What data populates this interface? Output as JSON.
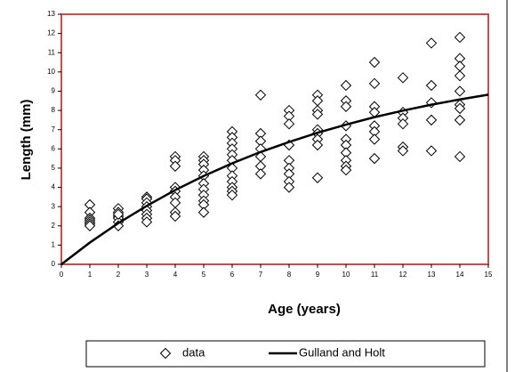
{
  "chart_data": {
    "type": "scatter",
    "xlabel": "Age (years)",
    "ylabel": "Length (mm)",
    "xlim": [
      0,
      15
    ],
    "ylim": [
      0,
      13
    ],
    "xticks": [
      0,
      1,
      2,
      3,
      4,
      5,
      6,
      7,
      8,
      9,
      10,
      11,
      12,
      13,
      14,
      15
    ],
    "yticks": [
      0,
      1,
      2,
      3,
      4,
      5,
      6,
      7,
      8,
      9,
      10,
      11,
      12,
      13
    ],
    "legend": "bottom",
    "series": [
      {
        "name": "data",
        "type": "scatter",
        "color": "#000000",
        "x": [
          1,
          1,
          1,
          1,
          1,
          1,
          1,
          2,
          2,
          2,
          2,
          2,
          2,
          2,
          3,
          3,
          3,
          3,
          3,
          3,
          3,
          3,
          4,
          4,
          4,
          4,
          4,
          4,
          4,
          4,
          4,
          5,
          5,
          5,
          5,
          5,
          5,
          5,
          5,
          5,
          5,
          5,
          6,
          6,
          6,
          6,
          6,
          6,
          6,
          6,
          6,
          6,
          6,
          6,
          7,
          7,
          7,
          7,
          7,
          7,
          7,
          8,
          8,
          8,
          8,
          8,
          8,
          8,
          8,
          8,
          9,
          9,
          9,
          9,
          9,
          9,
          9,
          9,
          9,
          10,
          10,
          10,
          10,
          10,
          10,
          10,
          10,
          10,
          10,
          11,
          11,
          11,
          11,
          11,
          11,
          11,
          11,
          12,
          12,
          12,
          12,
          12,
          12,
          13,
          13,
          13,
          13,
          13,
          14,
          14,
          14,
          14,
          14,
          14,
          14,
          14,
          14
        ],
        "values": [
          3.1,
          2.7,
          2.4,
          2.3,
          2.2,
          2.1,
          2.0,
          2.9,
          2.7,
          2.5,
          2.4,
          2.2,
          2.0,
          2.6,
          3.5,
          3.4,
          3.2,
          3.0,
          2.8,
          2.6,
          2.4,
          2.2,
          5.6,
          5.4,
          5.1,
          4.0,
          3.8,
          3.5,
          3.2,
          2.7,
          2.5,
          5.6,
          5.4,
          5.2,
          4.9,
          4.6,
          4.2,
          3.9,
          3.6,
          3.3,
          3.1,
          2.7,
          6.9,
          6.6,
          6.3,
          6.0,
          5.7,
          5.4,
          5.0,
          4.6,
          4.3,
          4.0,
          3.8,
          3.6,
          8.8,
          6.8,
          6.4,
          6.0,
          5.6,
          5.1,
          4.7,
          8.0,
          7.7,
          7.3,
          6.2,
          5.4,
          5.0,
          4.7,
          4.3,
          4.0,
          8.8,
          8.5,
          8.0,
          7.8,
          7.0,
          6.8,
          6.5,
          6.2,
          4.5,
          9.3,
          8.5,
          8.2,
          7.2,
          6.5,
          6.2,
          5.8,
          5.4,
          5.1,
          4.9,
          10.5,
          9.4,
          8.2,
          7.9,
          7.2,
          6.9,
          6.5,
          5.5,
          9.7,
          7.9,
          7.6,
          7.3,
          6.1,
          5.9,
          11.5,
          9.3,
          8.4,
          7.5,
          5.9,
          11.8,
          10.7,
          10.3,
          9.8,
          9.0,
          8.3,
          8.1,
          7.5,
          5.6
        ]
      },
      {
        "name": "Gulland and Holt",
        "type": "line",
        "color": "#000000",
        "x": [
          0,
          1,
          2,
          3,
          4,
          5,
          6,
          7,
          8,
          9,
          10,
          11,
          12,
          13,
          14,
          15
        ],
        "values": [
          0,
          1.13,
          2.14,
          3.04,
          3.86,
          4.59,
          5.25,
          5.84,
          6.36,
          6.84,
          7.26,
          7.65,
          7.99,
          8.3,
          8.57,
          8.82
        ]
      }
    ]
  }
}
